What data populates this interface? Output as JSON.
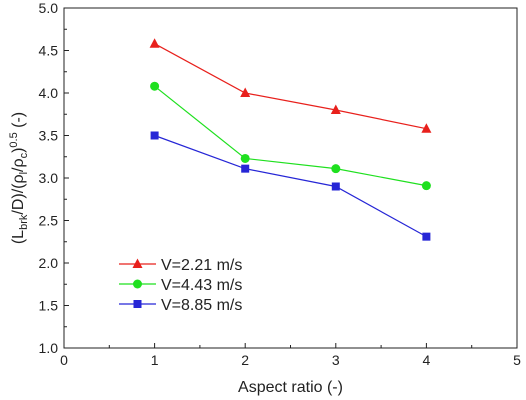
{
  "chart_data": {
    "type": "line",
    "xlabel": "Aspect ratio (-)",
    "ylabel": {
      "parts": [
        {
          "text": "(L",
          "shift": null
        },
        {
          "text": "brk",
          "shift": "sub"
        },
        {
          "text": "/D)/(ρ",
          "shift": null
        },
        {
          "text": "l",
          "shift": "sub"
        },
        {
          "text": "/ρ",
          "shift": null
        },
        {
          "text": "c",
          "shift": "sub"
        },
        {
          "text": ")",
          "shift": null
        },
        {
          "text": "0.5",
          "shift": "super"
        },
        {
          "text": " (-)",
          "shift": null
        }
      ]
    },
    "xlim": [
      0,
      5
    ],
    "ylim": [
      1.0,
      5.0
    ],
    "xticks": [
      0,
      1,
      2,
      3,
      4,
      5
    ],
    "yticks": [
      1.0,
      1.5,
      2.0,
      2.5,
      3.0,
      3.5,
      4.0,
      4.5,
      5.0
    ],
    "grid": false,
    "legend_position": "lower-left",
    "series": [
      {
        "name": "V=2.21 m/s",
        "color": "#e8201c",
        "marker": "triangle",
        "x": [
          1,
          2,
          3,
          4
        ],
        "y": [
          4.58,
          4.0,
          3.8,
          3.58
        ]
      },
      {
        "name": "V=4.43 m/s",
        "color": "#1fe01f",
        "marker": "circle",
        "x": [
          1,
          2,
          3,
          4
        ],
        "y": [
          4.08,
          3.23,
          3.11,
          2.91
        ]
      },
      {
        "name": "V=8.85 m/s",
        "color": "#2626d6",
        "marker": "square",
        "x": [
          1,
          2,
          3,
          4
        ],
        "y": [
          3.5,
          3.11,
          2.9,
          2.31
        ]
      }
    ]
  }
}
